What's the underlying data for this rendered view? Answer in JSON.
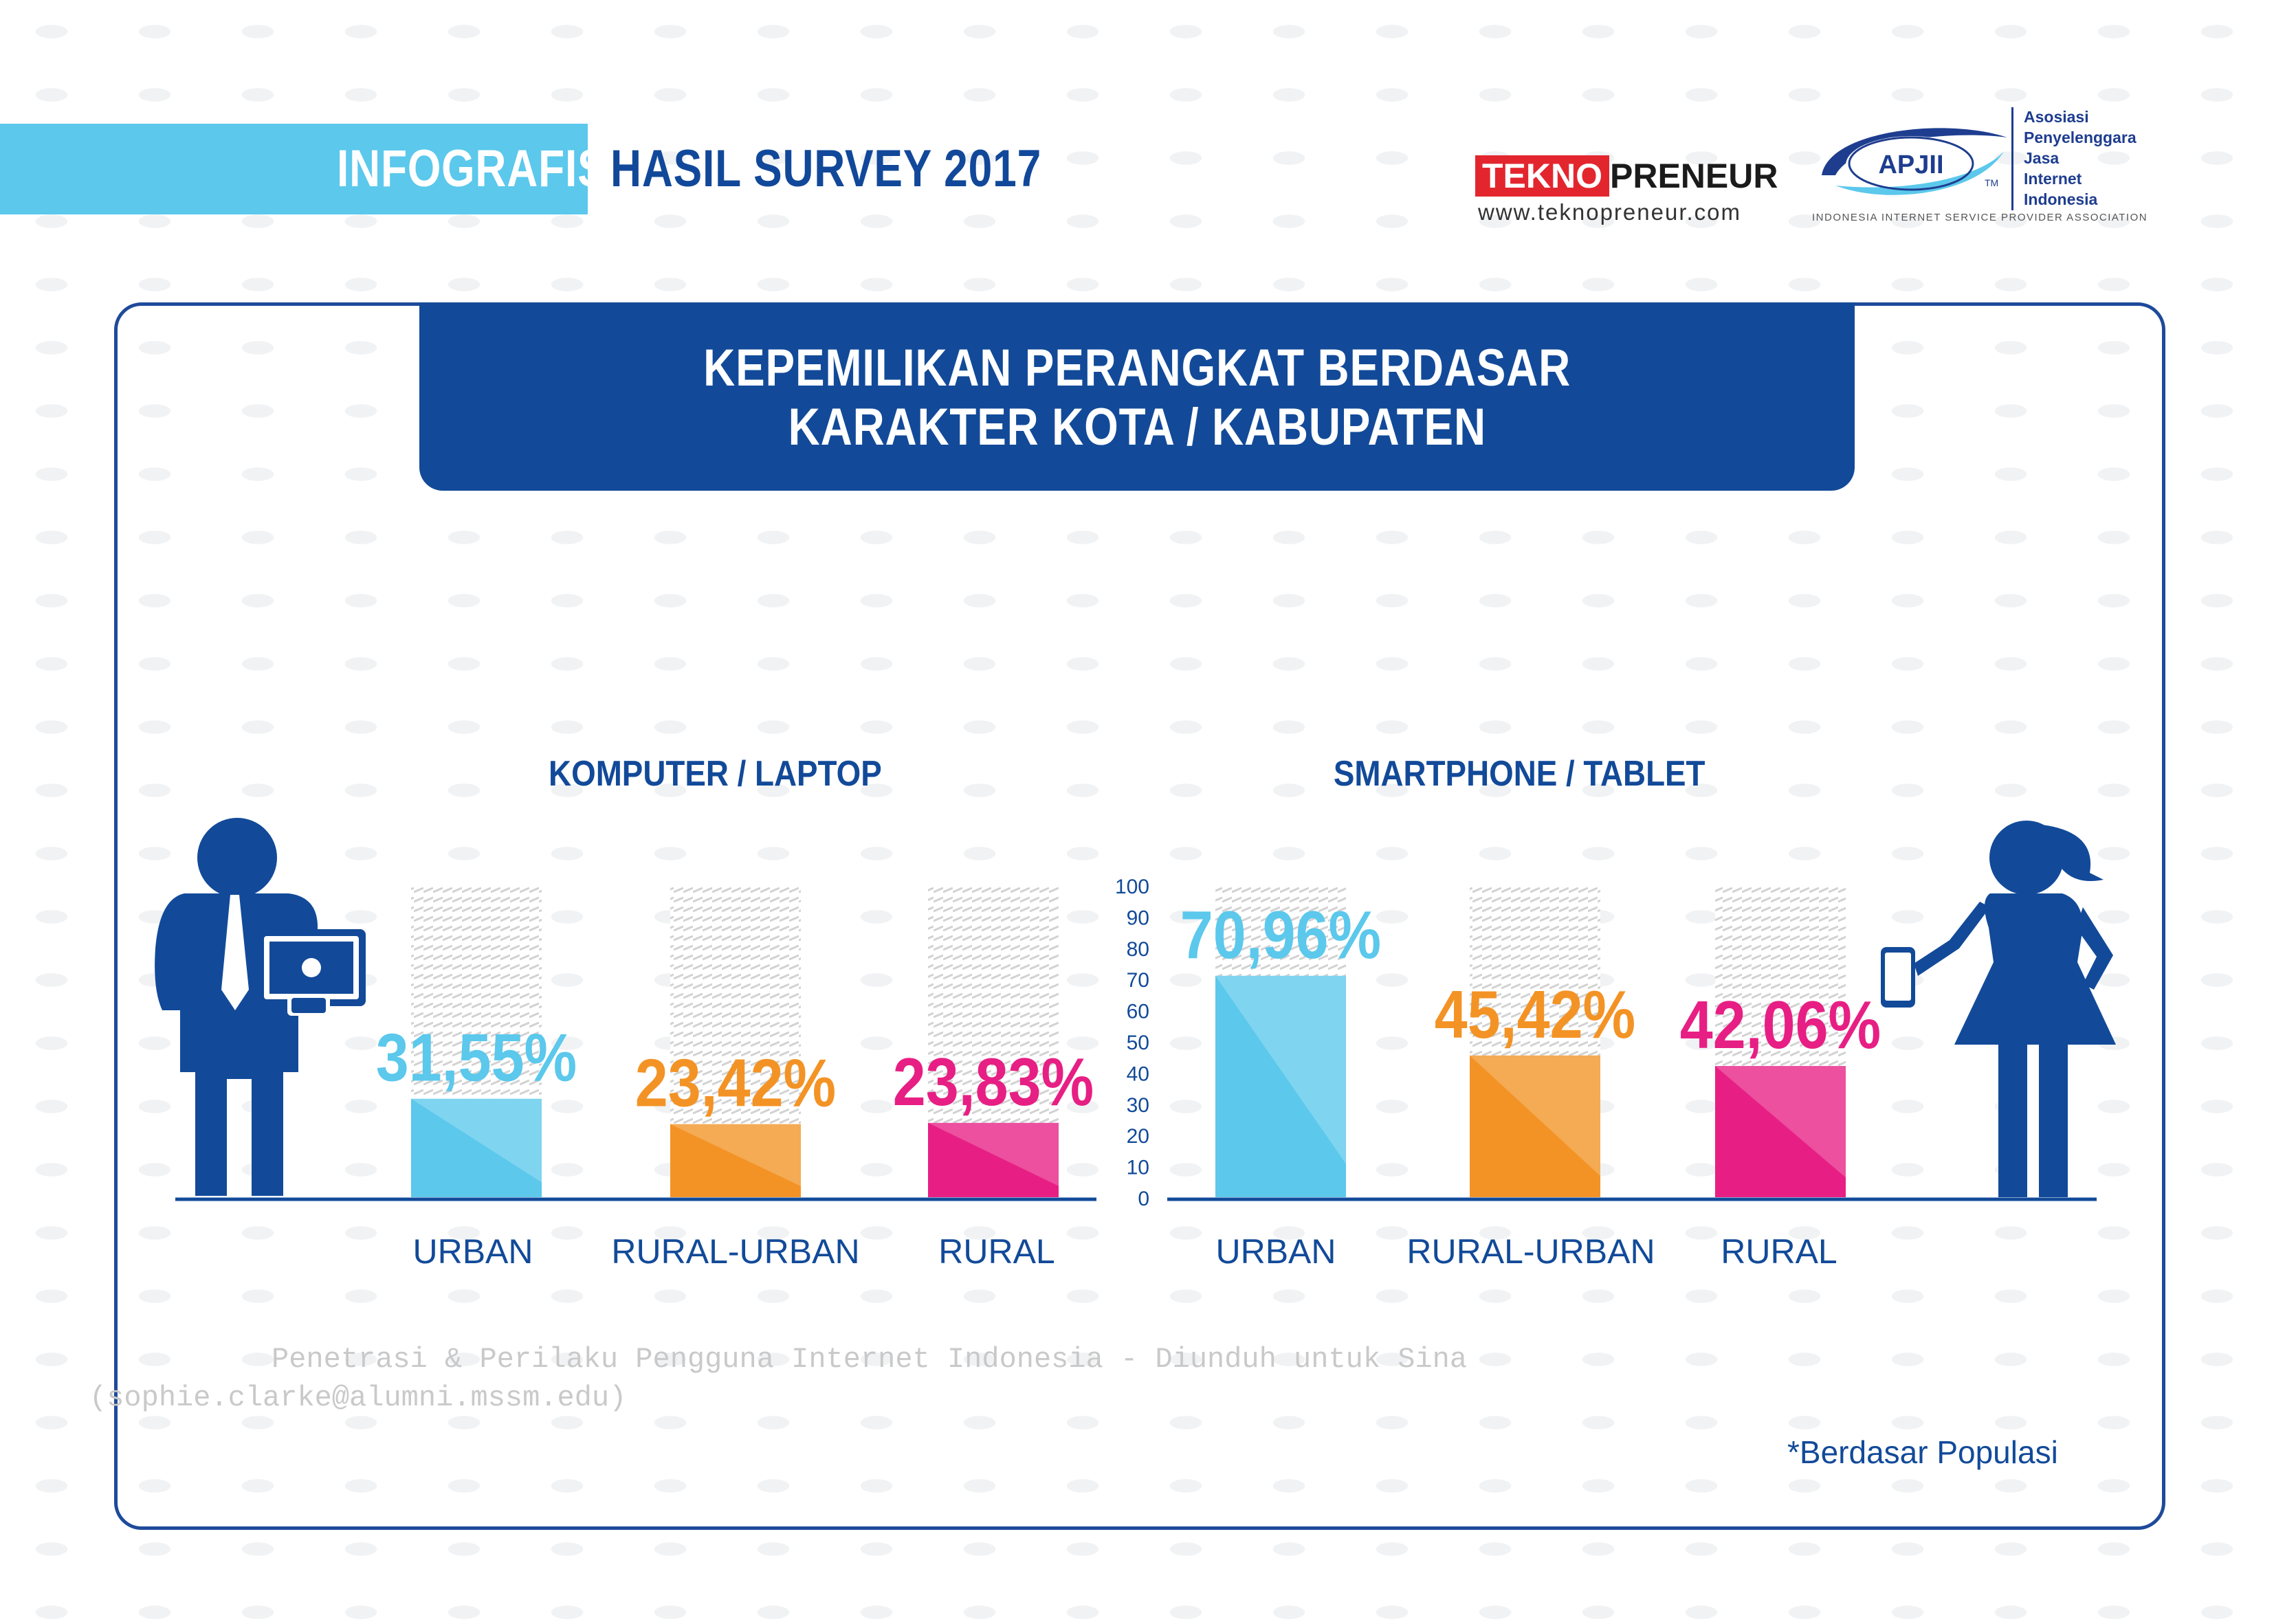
{
  "header": {
    "infografis": "INFOGRAFIS",
    "survey": "HASIL SURVEY 2017",
    "brand_tekno_red": "TEKNO",
    "brand_tekno_black": "PRENEUR",
    "brand_url": "www.teknopreneur.com",
    "apjii_badge": "APJII",
    "apjii_tm": "TM",
    "apjii_lines": [
      "Asosiasi",
      "Penyelenggara",
      "Jasa",
      "Internet",
      "Indonesia"
    ],
    "apjii_assoc": "INDONESIA INTERNET SERVICE PROVIDER ASSOCIATION"
  },
  "title": {
    "line1": "KEPEMILIKAN PERANGKAT BERDASAR",
    "line2": "KARAKTER KOTA / KABUPATEN"
  },
  "colors": {
    "urban": "#5bc8ec",
    "rural_urban": "#f39325",
    "rural": "#e71f84",
    "navy": "#124a99"
  },
  "chart_data": [
    {
      "type": "bar",
      "title": "KOMPUTER / LAPTOP",
      "categories": [
        "URBAN",
        "RURAL-URBAN",
        "RURAL"
      ],
      "values": [
        31.55,
        23.42,
        23.83
      ],
      "labels": [
        "31,55%",
        "23,42%",
        "23,83%"
      ],
      "ylim": [
        0,
        100
      ]
    },
    {
      "type": "bar",
      "title": "SMARTPHONE / TABLET",
      "categories": [
        "URBAN",
        "RURAL-URBAN",
        "RURAL"
      ],
      "values": [
        70.96,
        45.42,
        42.06
      ],
      "labels": [
        "70,96%",
        "45,42%",
        "42,06%"
      ],
      "ylim": [
        0,
        100
      ],
      "yticks": [
        "100",
        "90",
        "80",
        "70",
        "60",
        "50",
        "40",
        "30",
        "20",
        "10",
        "0"
      ]
    }
  ],
  "watermark": {
    "line1": "Penetrasi & Perilaku Pengguna Internet Indonesia - Diunduh untuk Sina",
    "line2": "(sophie.clarke@alumni.mssm.edu)"
  },
  "footnote": "*Berdasar Populasi"
}
